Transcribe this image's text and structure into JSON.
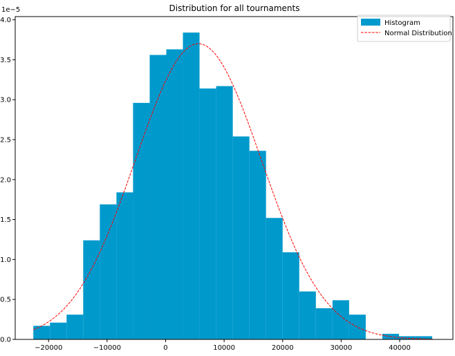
{
  "chart_data": {
    "type": "bar",
    "title": "Distribution for all tournaments",
    "xlabel": "",
    "ylabel": "",
    "y_offset_label": "1e−5",
    "y_scale": 1e-05,
    "xlim": [
      -25700,
      49100
    ],
    "ylim": [
      0,
      4.04
    ],
    "x_ticks": [
      -20000,
      -10000,
      0,
      10000,
      20000,
      30000,
      40000
    ],
    "x_tick_labels": [
      "−20000",
      "−10000",
      "0",
      "10000",
      "20000",
      "30000",
      "40000"
    ],
    "y_ticks": [
      0.0,
      0.5,
      1.0,
      1.5,
      2.0,
      2.5,
      3.0,
      3.5,
      4.0
    ],
    "y_tick_labels": [
      "0.0",
      "0.5",
      "1.0",
      "1.5",
      "2.0",
      "2.5",
      "3.0",
      "3.5",
      "4.0"
    ],
    "grid": false,
    "legend_position": "top-right",
    "series": [
      {
        "name": "Histogram",
        "kind": "histogram",
        "color": "#0099cc",
        "bin_start": -22600,
        "bin_width": 2840,
        "values": [
          0.17,
          0.21,
          0.31,
          1.24,
          1.69,
          1.84,
          2.96,
          3.56,
          3.63,
          3.84,
          3.14,
          3.17,
          2.54,
          2.36,
          1.52,
          1.09,
          0.6,
          0.39,
          0.49,
          0.31,
          0.0,
          0.07,
          0.04,
          0.04
        ]
      },
      {
        "name": "Normal Distribution",
        "kind": "normal_pdf",
        "color": "#ff0000",
        "line_style": "dashed",
        "mean": 5600,
        "std": 10780,
        "x_range": [
          -22600,
          45600
        ]
      }
    ]
  }
}
